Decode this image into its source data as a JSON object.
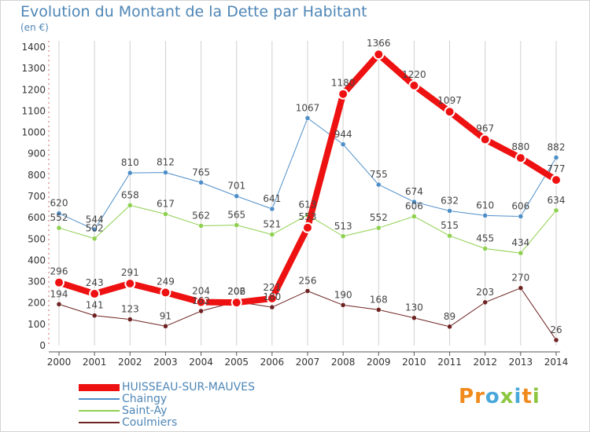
{
  "title": "Evolution du Montant de la Dette par Habitant",
  "unit": "(en €)",
  "logo": {
    "letters": [
      "P",
      "r",
      "o",
      "x",
      "i",
      "t",
      "i"
    ],
    "colors": [
      "#f08a1c",
      "#f08a1c",
      "#49a8da",
      "#8cc63f",
      "#49a8da",
      "#f08a1c",
      "#8cc63f"
    ]
  },
  "chart_data": {
    "type": "line",
    "title": "Evolution du Montant de la Dette par Habitant",
    "ylabel": "(en €)",
    "xlabel": "",
    "x": [
      "2000",
      "2001",
      "2002",
      "2003",
      "2004",
      "2005",
      "2006",
      "2007",
      "2008",
      "2009",
      "2010",
      "2011",
      "2012",
      "2013",
      "2014"
    ],
    "ylim": [
      0,
      1400
    ],
    "yticks": [
      0,
      100,
      200,
      300,
      400,
      500,
      600,
      700,
      800,
      900,
      1000,
      1100,
      1200,
      1300,
      1400
    ],
    "grid": "vertical",
    "legend_position": "bottom-left",
    "series": [
      {
        "name": "HUISSEAU-SUR-MAUVES",
        "color": "#ee1111",
        "width": 8,
        "marker_r": 6,
        "values": [
          296,
          243,
          291,
          249,
          204,
          202,
          221,
          553,
          1180,
          1366,
          1220,
          1097,
          967,
          880,
          777
        ],
        "labels": [
          "296",
          "243",
          "291",
          "249",
          "204",
          "202",
          "221",
          "553",
          "1180",
          "1366",
          "1220",
          "1097",
          "967",
          "880",
          "777"
        ]
      },
      {
        "name": "Chaingy",
        "color": "#4e8ec8",
        "width": 1,
        "marker_r": 3,
        "values": [
          620,
          544,
          810,
          812,
          765,
          701,
          641,
          1067,
          944,
          755,
          674,
          632,
          610,
          606,
          882
        ],
        "labels": [
          "620",
          "544",
          "810",
          "812",
          "765",
          "701",
          "641",
          "1067",
          "944",
          "755",
          "674",
          "632",
          "610",
          "606",
          "882"
        ]
      },
      {
        "name": "Saint-Ay",
        "color": "#8ed04f",
        "width": 1,
        "marker_r": 3,
        "values": [
          552,
          502,
          658,
          617,
          562,
          565,
          521,
          613,
          513,
          552,
          606,
          515,
          455,
          434,
          634
        ],
        "labels": [
          "552",
          "502",
          "658",
          "617",
          "562",
          "565",
          "521",
          "613",
          "513",
          "552",
          "606",
          "515",
          "455",
          "434",
          "634"
        ]
      },
      {
        "name": "Coulmiers",
        "color": "#6e2222",
        "width": 1,
        "marker_r": 3,
        "values": [
          194,
          141,
          123,
          91,
          162,
          206,
          180,
          256,
          190,
          168,
          130,
          89,
          203,
          270,
          26
        ],
        "labels": [
          "194",
          "141",
          "123",
          "91",
          "162",
          "206",
          "180",
          "256",
          "190",
          "168",
          "130",
          "89",
          "203",
          "270",
          "26"
        ]
      }
    ]
  }
}
